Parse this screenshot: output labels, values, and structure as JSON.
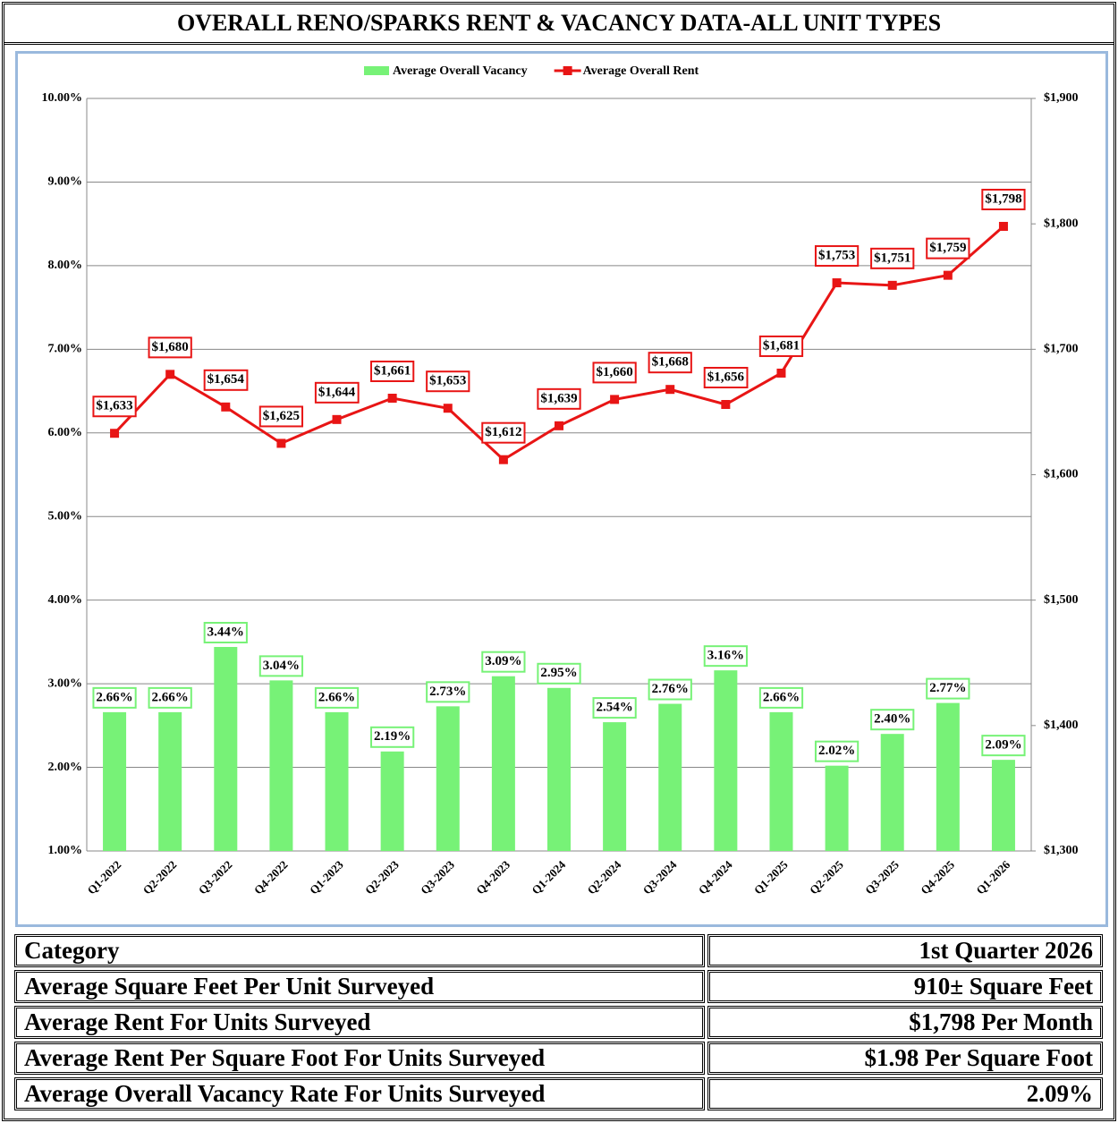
{
  "header": {
    "title": "OVERALL RENO/SPARKS RENT & VACANCY DATA-ALL UNIT TYPES"
  },
  "chart_data": {
    "type": "combo",
    "categories": [
      "Q1-2022",
      "Q2-2022",
      "Q3-2022",
      "Q4-2022",
      "Q1-2023",
      "Q2-2023",
      "Q3-2023",
      "Q4-2023",
      "Q1-2024",
      "Q2-2024",
      "Q3-2024",
      "Q4-2024",
      "Q1-2025",
      "Q2-2025",
      "Q3-2025",
      "Q4-2025",
      "Q1-2026"
    ],
    "series": [
      {
        "name": "Average Overall Vacancy",
        "type": "bar",
        "color": "#77f277",
        "values": [
          2.66,
          2.66,
          3.44,
          3.04,
          2.66,
          2.19,
          2.73,
          3.09,
          2.95,
          2.54,
          2.76,
          3.16,
          2.66,
          2.02,
          2.4,
          2.77,
          2.09
        ],
        "value_labels": [
          "2.66%",
          "2.66%",
          "3.44%",
          "3.04%",
          "2.66%",
          "2.19%",
          "2.73%",
          "3.09%",
          "2.95%",
          "2.54%",
          "2.76%",
          "3.16%",
          "2.66%",
          "2.02%",
          "2.40%",
          "2.77%",
          "2.09%"
        ]
      },
      {
        "name": "Average Overall Rent",
        "type": "line",
        "axis": "y2",
        "color": "#e81515",
        "values": [
          1633,
          1680,
          1654,
          1625,
          1644,
          1661,
          1653,
          1612,
          1639,
          1660,
          1668,
          1656,
          1681,
          1753,
          1751,
          1759,
          1798
        ],
        "value_labels": [
          "$1,633",
          "$1,680",
          "$1,654",
          "$1,625",
          "$1,644",
          "$1,661",
          "$1,653",
          "$1,612",
          "$1,639",
          "$1,660",
          "$1,668",
          "$1,656",
          "$1,681",
          "$1,753",
          "$1,751",
          "$1,759",
          "$1,798"
        ]
      }
    ],
    "ylim": [
      1,
      10
    ],
    "yticks": [
      {
        "value": 1,
        "label": "1.00%"
      },
      {
        "value": 2,
        "label": "2.00%"
      },
      {
        "value": 3,
        "label": "3.00%"
      },
      {
        "value": 4,
        "label": "4.00%"
      },
      {
        "value": 5,
        "label": "5.00%"
      },
      {
        "value": 6,
        "label": "6.00%"
      },
      {
        "value": 7,
        "label": "7.00%"
      },
      {
        "value": 8,
        "label": "8.00%"
      },
      {
        "value": 9,
        "label": "9.00%"
      },
      {
        "value": 10,
        "label": "10.00%"
      }
    ],
    "y2lim": [
      1300,
      1900
    ],
    "y2ticks": [
      {
        "value": 1300,
        "label": "$1,300"
      },
      {
        "value": 1400,
        "label": "$1,400"
      },
      {
        "value": 1500,
        "label": "$1,500"
      },
      {
        "value": 1600,
        "label": "$1,600"
      },
      {
        "value": 1700,
        "label": "$1,700"
      },
      {
        "value": 1800,
        "label": "$1,800"
      },
      {
        "value": 1900,
        "label": "$1,900"
      }
    ],
    "grid": true,
    "legend": "top"
  },
  "table": {
    "header": [
      "Category",
      "1st Quarter 2026"
    ],
    "rows": [
      [
        "Average Square Feet Per Unit Surveyed",
        "910± Square Feet"
      ],
      [
        "Average Rent For Units Surveyed",
        "$1,798 Per Month"
      ],
      [
        "Average Rent Per Square Foot For Units Surveyed",
        "$1.98 Per Square Foot"
      ],
      [
        "Average Overall Vacancy Rate For Units Surveyed",
        "2.09%"
      ]
    ]
  }
}
